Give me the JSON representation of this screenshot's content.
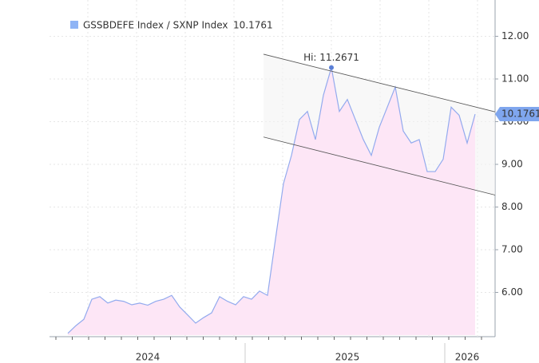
{
  "chart_data": {
    "type": "area",
    "series": [
      {
        "name": "GSSBDEFE Index / SXNP Index",
        "color": "#93aaee",
        "fill": "#fde6f6",
        "values": [
          5.04,
          5.22,
          5.37,
          5.84,
          5.9,
          5.75,
          5.82,
          5.79,
          5.71,
          5.75,
          5.7,
          5.79,
          5.84,
          5.93,
          5.66,
          5.47,
          5.28,
          5.41,
          5.52,
          5.9,
          5.79,
          5.71,
          5.9,
          5.84,
          6.03,
          5.93,
          7.25,
          8.55,
          9.21,
          10.05,
          10.24,
          9.58,
          10.62,
          11.2671,
          10.24,
          10.52,
          10.05,
          9.58,
          9.21,
          9.87,
          10.34,
          10.81,
          9.78,
          9.5,
          9.58,
          8.83,
          8.83,
          9.12,
          10.34,
          10.15,
          9.5,
          10.1761
        ]
      }
    ],
    "categories": [
      null,
      null,
      null,
      null,
      null,
      null,
      null,
      null,
      null,
      null,
      "2024",
      null,
      null,
      null,
      null,
      null,
      null,
      null,
      null,
      null,
      null,
      null,
      null,
      null,
      null,
      null,
      null,
      null,
      null,
      null,
      null,
      null,
      null,
      null,
      null,
      "2025",
      null,
      null,
      null,
      null,
      null,
      null,
      null,
      null,
      null,
      null,
      null,
      null,
      null,
      null,
      "2026",
      null
    ],
    "high_label": "Hi: 11.2671",
    "channel": {
      "upper": [
        11.58,
        10.23
      ],
      "lower": [
        9.64,
        8.28
      ]
    },
    "ylim": [
      5.0,
      12.85
    ],
    "yticks": [
      {
        "value": 6,
        "label": "6.00"
      },
      {
        "value": 7,
        "label": "7.00"
      },
      {
        "value": 8,
        "label": "8.00"
      },
      {
        "value": 9,
        "label": "9.00"
      },
      {
        "value": 10,
        "label": "10.00"
      },
      {
        "value": 11,
        "label": "11.00"
      },
      {
        "value": 12,
        "label": "12.00"
      }
    ],
    "grid": true
  }
}
